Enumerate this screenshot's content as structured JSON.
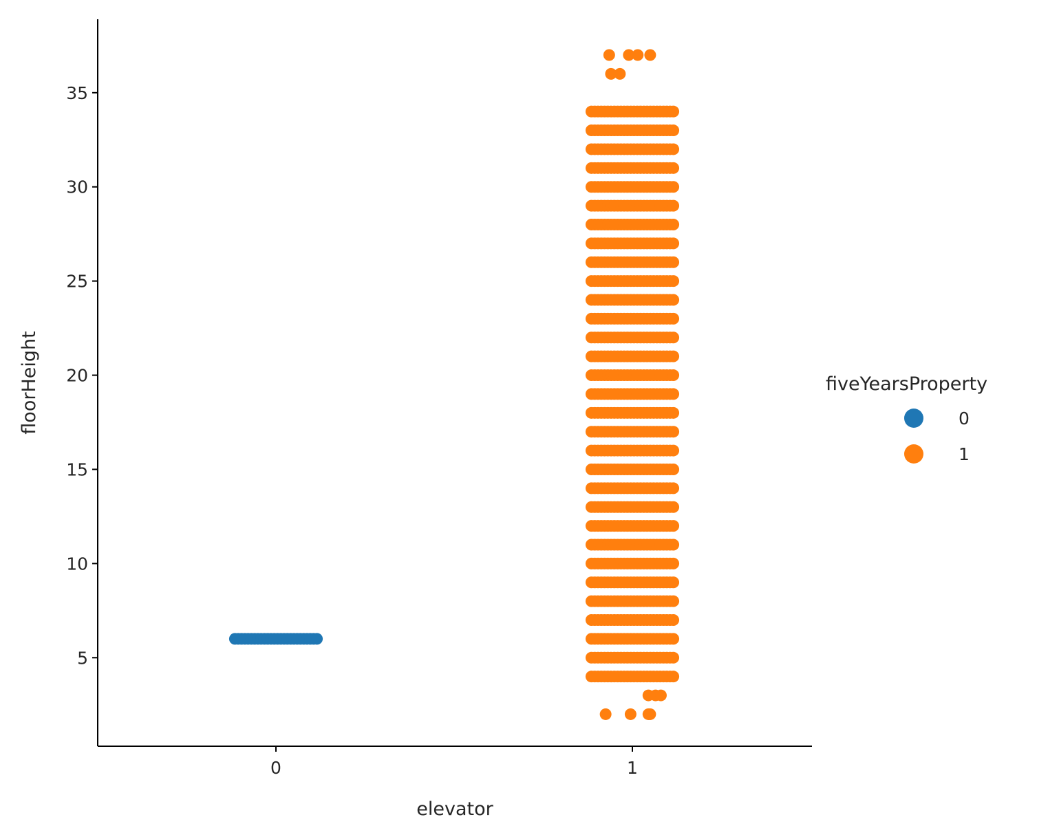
{
  "chart_data": {
    "type": "scatter",
    "subtype": "stripplot",
    "xlabel": "elevator",
    "ylabel": "floorHeight",
    "categories": [
      "0",
      "1"
    ],
    "ylim": [
      0.3,
      38.9
    ],
    "yticks": [
      5,
      10,
      15,
      20,
      25,
      30,
      35
    ],
    "grid": false,
    "legend": {
      "title": "fiveYearsProperty",
      "placement": "right",
      "entries": [
        {
          "label": "0",
          "color": "#1f77b4"
        },
        {
          "label": "1",
          "color": "#ff7f0e"
        }
      ]
    },
    "series": [
      {
        "name": "0",
        "color": "#1f77b4",
        "points": [
          {
            "category": "0",
            "y": 6,
            "spread": "full"
          }
        ]
      },
      {
        "name": "1",
        "color": "#ff7f0e",
        "points": [
          {
            "category": "1",
            "y": 2,
            "offsets": [
              -0.075,
              -0.005,
              0.045,
              0.05
            ]
          },
          {
            "category": "1",
            "y": 3,
            "offsets": [
              0.045,
              0.065,
              0.08
            ]
          },
          {
            "category": "1",
            "y": 4,
            "spread": "full"
          },
          {
            "category": "1",
            "y": 5,
            "spread": "full"
          },
          {
            "category": "1",
            "y": 6,
            "spread": "full"
          },
          {
            "category": "1",
            "y": 7,
            "spread": "full"
          },
          {
            "category": "1",
            "y": 8,
            "spread": "full"
          },
          {
            "category": "1",
            "y": 9,
            "spread": "full"
          },
          {
            "category": "1",
            "y": 10,
            "spread": "full"
          },
          {
            "category": "1",
            "y": 11,
            "spread": "full"
          },
          {
            "category": "1",
            "y": 12,
            "spread": "full"
          },
          {
            "category": "1",
            "y": 13,
            "spread": "full"
          },
          {
            "category": "1",
            "y": 14,
            "spread": "full"
          },
          {
            "category": "1",
            "y": 15,
            "spread": "full"
          },
          {
            "category": "1",
            "y": 16,
            "spread": "full"
          },
          {
            "category": "1",
            "y": 17,
            "spread": "full"
          },
          {
            "category": "1",
            "y": 18,
            "spread": "full"
          },
          {
            "category": "1",
            "y": 19,
            "spread": "full"
          },
          {
            "category": "1",
            "y": 20,
            "spread": "full"
          },
          {
            "category": "1",
            "y": 21,
            "spread": "full"
          },
          {
            "category": "1",
            "y": 22,
            "spread": "full"
          },
          {
            "category": "1",
            "y": 23,
            "spread": "full"
          },
          {
            "category": "1",
            "y": 24,
            "spread": "full"
          },
          {
            "category": "1",
            "y": 25,
            "spread": "full"
          },
          {
            "category": "1",
            "y": 26,
            "spread": "full"
          },
          {
            "category": "1",
            "y": 27,
            "spread": "full"
          },
          {
            "category": "1",
            "y": 28,
            "spread": "full"
          },
          {
            "category": "1",
            "y": 29,
            "spread": "full"
          },
          {
            "category": "1",
            "y": 30,
            "spread": "full"
          },
          {
            "category": "1",
            "y": 31,
            "spread": "full"
          },
          {
            "category": "1",
            "y": 32,
            "spread": "full"
          },
          {
            "category": "1",
            "y": 33,
            "spread": "full"
          },
          {
            "category": "1",
            "y": 34,
            "spread": "full"
          },
          {
            "category": "1",
            "y": 36,
            "offsets": [
              -0.06,
              -0.035
            ]
          },
          {
            "category": "1",
            "y": 37,
            "offsets": [
              -0.065,
              -0.01,
              0.015,
              0.05
            ]
          }
        ]
      }
    ]
  }
}
